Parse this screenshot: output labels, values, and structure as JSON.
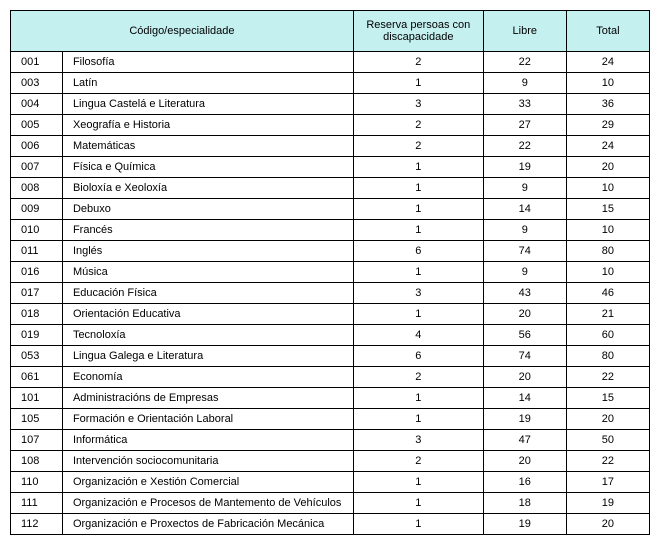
{
  "table": {
    "header_bg": "#c5f0f0",
    "columns": [
      "Código/especialidade",
      "Reserva persoas con discapacidade",
      "Libre",
      "Total"
    ],
    "rows": [
      {
        "code": "001",
        "name": "Filosofía",
        "reserva": 2,
        "libre": 22,
        "total": 24
      },
      {
        "code": "003",
        "name": "Latín",
        "reserva": 1,
        "libre": 9,
        "total": 10
      },
      {
        "code": "004",
        "name": "Lingua Castelá e Literatura",
        "reserva": 3,
        "libre": 33,
        "total": 36
      },
      {
        "code": "005",
        "name": "Xeografía e Historia",
        "reserva": 2,
        "libre": 27,
        "total": 29
      },
      {
        "code": "006",
        "name": "Matemáticas",
        "reserva": 2,
        "libre": 22,
        "total": 24
      },
      {
        "code": "007",
        "name": "Física e Química",
        "reserva": 1,
        "libre": 19,
        "total": 20
      },
      {
        "code": "008",
        "name": "Bioloxía e Xeoloxía",
        "reserva": 1,
        "libre": 9,
        "total": 10
      },
      {
        "code": "009",
        "name": "Debuxo",
        "reserva": 1,
        "libre": 14,
        "total": 15
      },
      {
        "code": "010",
        "name": "Francés",
        "reserva": 1,
        "libre": 9,
        "total": 10
      },
      {
        "code": "011",
        "name": "Inglés",
        "reserva": 6,
        "libre": 74,
        "total": 80
      },
      {
        "code": "016",
        "name": "Música",
        "reserva": 1,
        "libre": 9,
        "total": 10
      },
      {
        "code": "017",
        "name": "Educación Física",
        "reserva": 3,
        "libre": 43,
        "total": 46
      },
      {
        "code": "018",
        "name": "Orientación Educativa",
        "reserva": 1,
        "libre": 20,
        "total": 21
      },
      {
        "code": "019",
        "name": "Tecnoloxía",
        "reserva": 4,
        "libre": 56,
        "total": 60
      },
      {
        "code": "053",
        "name": "Lingua Galega e Literatura",
        "reserva": 6,
        "libre": 74,
        "total": 80
      },
      {
        "code": "061",
        "name": "Economía",
        "reserva": 2,
        "libre": 20,
        "total": 22
      },
      {
        "code": "101",
        "name": "Administracións de Empresas",
        "reserva": 1,
        "libre": 14,
        "total": 15
      },
      {
        "code": "105",
        "name": "Formación e Orientación Laboral",
        "reserva": 1,
        "libre": 19,
        "total": 20
      },
      {
        "code": "107",
        "name": "Informática",
        "reserva": 3,
        "libre": 47,
        "total": 50
      },
      {
        "code": "108",
        "name": "Intervención sociocomunitaria",
        "reserva": 2,
        "libre": 20,
        "total": 22
      },
      {
        "code": "110",
        "name": "Organización e Xestión Comercial",
        "reserva": 1,
        "libre": 16,
        "total": 17
      },
      {
        "code": "111",
        "name": "Organización e Procesos de Mantemento de Vehículos",
        "reserva": 1,
        "libre": 18,
        "total": 19
      },
      {
        "code": "112",
        "name": "Organización e Proxectos de Fabricación Mecánica",
        "reserva": 1,
        "libre": 19,
        "total": 20
      }
    ]
  }
}
